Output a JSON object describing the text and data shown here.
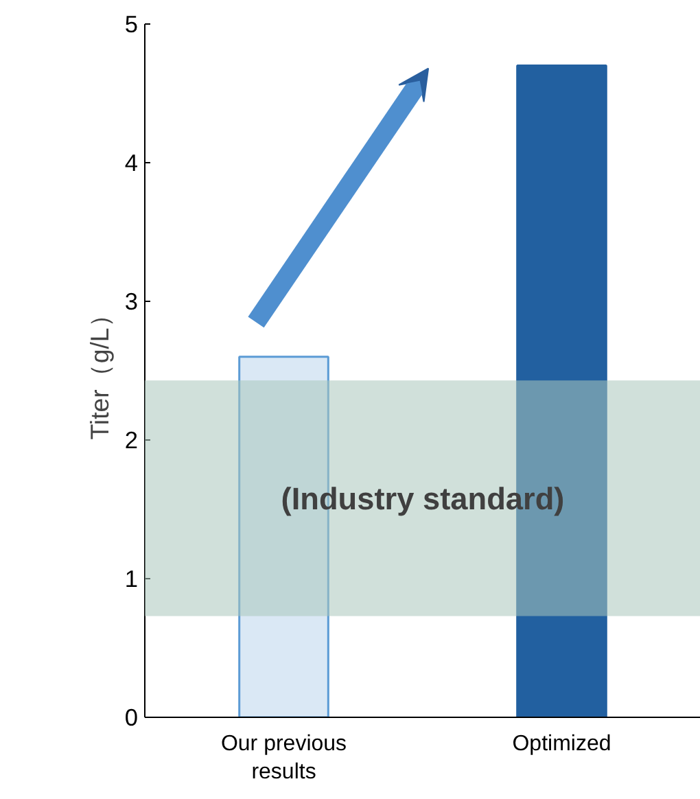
{
  "chart_data": {
    "type": "bar",
    "ylabel": "Titer（g/L）",
    "categories": [
      "Our previous\nresults",
      "Optimized"
    ],
    "values": [
      2.6,
      4.7
    ],
    "colors": [
      "#dae8f5",
      "#2260a0"
    ],
    "ylim": [
      0,
      5
    ],
    "yticks": [
      0,
      1,
      2,
      3,
      4,
      5
    ],
    "grid": false,
    "bands": [
      {
        "axis": "y",
        "from": 0.73,
        "to": 2.43,
        "label": "(Industry standard)",
        "color": "#a9c6bc"
      }
    ]
  }
}
